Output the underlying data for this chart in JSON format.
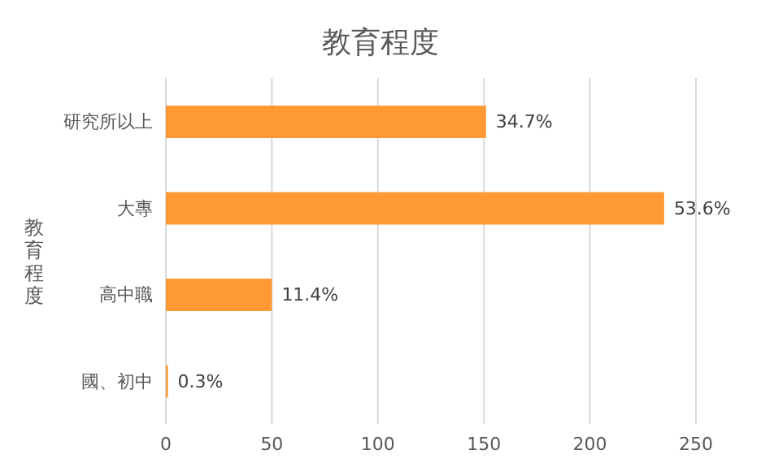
{
  "chart_data": {
    "type": "bar",
    "orientation": "horizontal",
    "title": "教育程度",
    "ylabel": "教育程度",
    "categories": [
      "研究所以上",
      "大專",
      "高中職",
      "國、初中"
    ],
    "values": [
      151,
      235,
      50,
      1
    ],
    "annotations": [
      {
        "text": "34.7%",
        "x": 151,
        "y": "研究所以上"
      },
      {
        "text": "53.6%",
        "x": 235,
        "y": "大專"
      },
      {
        "text": "11.4%",
        "x": 50,
        "y": "高中職"
      },
      {
        "text": "0.3%",
        "x": 1,
        "y": "國、初中"
      }
    ],
    "color": "#ff9933",
    "xlim": [
      0,
      250
    ],
    "xticks": [
      0,
      50,
      100,
      150,
      200,
      250
    ],
    "grid": "x"
  }
}
